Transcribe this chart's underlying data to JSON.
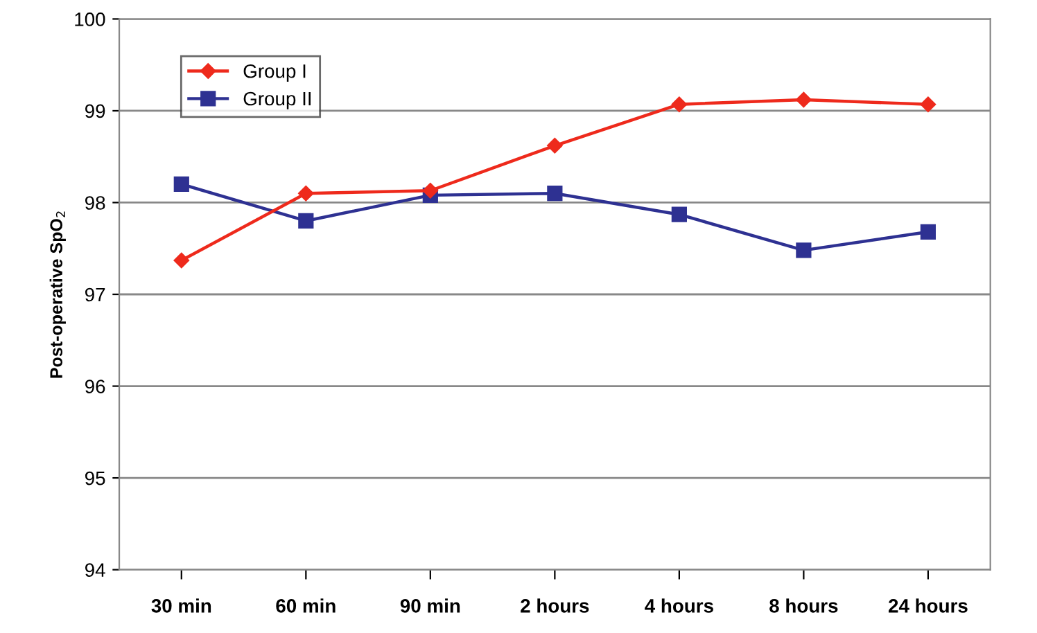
{
  "chart_data": {
    "type": "line",
    "ylabel": "Post-operative SpO$_{2}$",
    "categories": [
      "30 min",
      "60 min",
      "90 min",
      "2 hours",
      "4 hours",
      "8 hours",
      "24 hours"
    ],
    "series": [
      {
        "name": "Group I",
        "color": "#ee2a1c",
        "marker": "diamond",
        "values": [
          97.37,
          98.1,
          98.13,
          98.62,
          99.07,
          99.12,
          99.07
        ]
      },
      {
        "name": "Group II",
        "color": "#2e3192",
        "marker": "square",
        "values": [
          98.2,
          97.8,
          98.08,
          98.1,
          97.87,
          97.48,
          97.68
        ]
      }
    ],
    "ylim": [
      94,
      100
    ],
    "yticks": [
      94,
      95,
      96,
      97,
      98,
      99,
      100
    ],
    "grid": "y",
    "legend": "top left"
  }
}
